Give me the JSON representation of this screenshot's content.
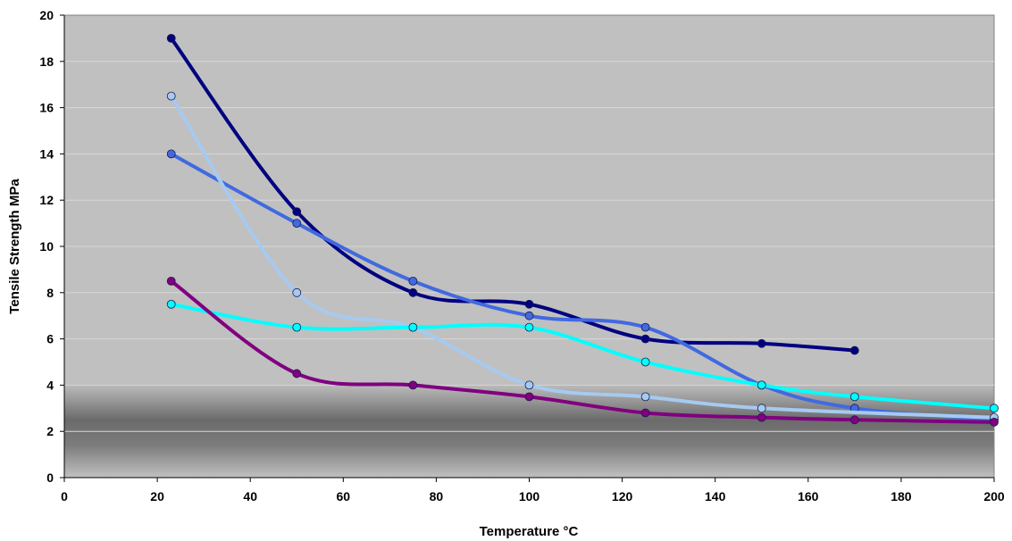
{
  "chart_data": {
    "type": "line",
    "xlabel": "Temperature °C",
    "ylabel": "Tensile Strength MPa",
    "xlim": [
      0,
      200
    ],
    "ylim": [
      0,
      20
    ],
    "x_ticks": [
      0,
      20,
      40,
      60,
      80,
      100,
      120,
      140,
      160,
      180,
      200
    ],
    "y_ticks": [
      0,
      2,
      4,
      6,
      8,
      10,
      12,
      14,
      16,
      18,
      20
    ],
    "grid": "horizontal-major",
    "legend": "none",
    "plot_background": "#c0c0c0",
    "series": [
      {
        "color": "#000080",
        "x": [
          23,
          50,
          75,
          100,
          125,
          150,
          170
        ],
        "y": [
          19,
          11.5,
          8,
          7.5,
          6,
          5.8,
          5.5
        ]
      },
      {
        "color": "#4169e1",
        "x": [
          23,
          50,
          75,
          100,
          125,
          150,
          170,
          200
        ],
        "y": [
          14,
          11,
          8.5,
          7,
          6.5,
          4,
          3,
          2.5
        ]
      },
      {
        "color": "#a6caf0",
        "x": [
          23,
          50,
          75,
          100,
          125,
          150,
          200
        ],
        "y": [
          16.5,
          8,
          6.5,
          4,
          3.5,
          3,
          2.6
        ]
      },
      {
        "color": "#00ffff",
        "x": [
          23,
          50,
          75,
          100,
          125,
          150,
          170,
          200
        ],
        "y": [
          7.5,
          6.5,
          6.5,
          6.5,
          5,
          4,
          3.5,
          3
        ]
      },
      {
        "color": "#800080",
        "x": [
          23,
          50,
          75,
          100,
          125,
          150,
          170,
          200
        ],
        "y": [
          8.5,
          4.5,
          4,
          3.5,
          2.8,
          2.6,
          2.5,
          2.4
        ]
      }
    ]
  }
}
